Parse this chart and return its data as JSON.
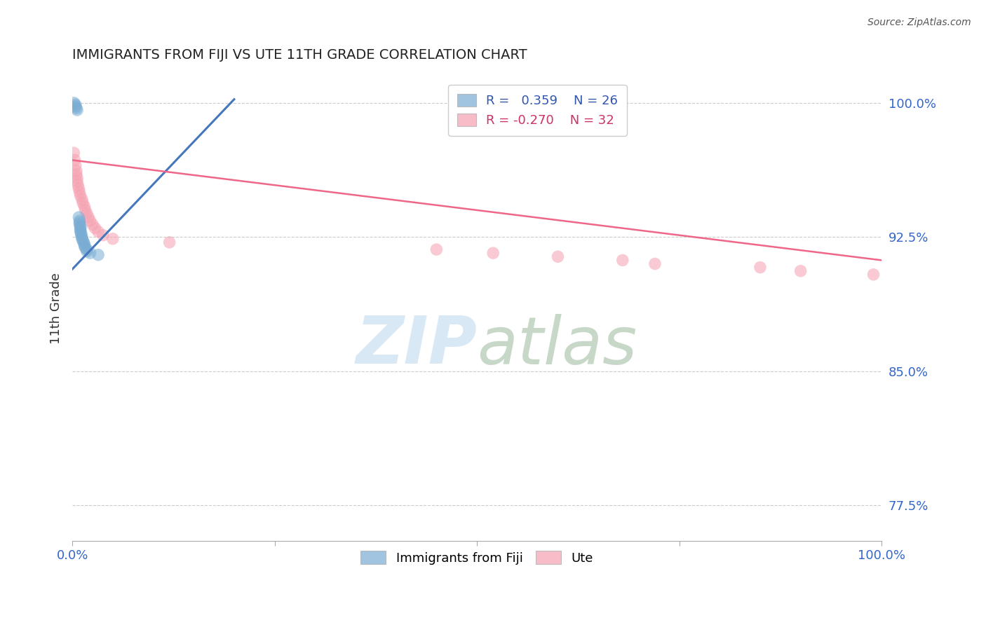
{
  "title": "IMMIGRANTS FROM FIJI VS UTE 11TH GRADE CORRELATION CHART",
  "source_text": "Source: ZipAtlas.com",
  "ylabel": "11th Grade",
  "xlim": [
    0.0,
    1.0
  ],
  "ylim": [
    0.755,
    1.015
  ],
  "yticks": [
    0.775,
    0.85,
    0.925,
    1.0
  ],
  "ytick_labels": [
    "77.5%",
    "85.0%",
    "92.5%",
    "100.0%"
  ],
  "r_blue": 0.359,
  "n_blue": 26,
  "r_pink": -0.27,
  "n_pink": 32,
  "blue_color": "#7aadd4",
  "pink_color": "#f5a0b0",
  "blue_line_color": "#4477bb",
  "pink_line_color": "#ee6688",
  "legend_label_blue": "Immigrants from Fiji",
  "legend_label_pink": "Ute",
  "blue_points_x": [
    0.002,
    0.004,
    0.004,
    0.005,
    0.006,
    0.008,
    0.009,
    0.009,
    0.009,
    0.01,
    0.01,
    0.01,
    0.01,
    0.011,
    0.011,
    0.012,
    0.012,
    0.013,
    0.014,
    0.015,
    0.015,
    0.016,
    0.018,
    0.018,
    0.022,
    0.032
  ],
  "blue_points_y": [
    1.0,
    0.999,
    0.998,
    0.997,
    0.996,
    0.936,
    0.934,
    0.933,
    0.932,
    0.931,
    0.93,
    0.929,
    0.928,
    0.927,
    0.926,
    0.925,
    0.924,
    0.923,
    0.922,
    0.921,
    0.92,
    0.919,
    0.918,
    0.917,
    0.916,
    0.915
  ],
  "pink_points_x": [
    0.002,
    0.003,
    0.004,
    0.005,
    0.005,
    0.006,
    0.006,
    0.007,
    0.008,
    0.009,
    0.01,
    0.012,
    0.013,
    0.015,
    0.016,
    0.018,
    0.02,
    0.022,
    0.025,
    0.028,
    0.032,
    0.038,
    0.05,
    0.12,
    0.45,
    0.52,
    0.6,
    0.68,
    0.72,
    0.85,
    0.9,
    0.99
  ],
  "pink_points_y": [
    0.972,
    0.968,
    0.965,
    0.962,
    0.96,
    0.958,
    0.956,
    0.954,
    0.952,
    0.95,
    0.948,
    0.946,
    0.944,
    0.942,
    0.94,
    0.938,
    0.936,
    0.934,
    0.932,
    0.93,
    0.928,
    0.926,
    0.924,
    0.922,
    0.918,
    0.916,
    0.914,
    0.912,
    0.91,
    0.908,
    0.906,
    0.904
  ],
  "blue_line_x0": 0.0,
  "blue_line_y0": 0.907,
  "blue_line_x1": 0.2,
  "blue_line_y1": 1.002,
  "pink_line_x0": 0.0,
  "pink_line_y0": 0.968,
  "pink_line_x1": 1.0,
  "pink_line_y1": 0.912
}
